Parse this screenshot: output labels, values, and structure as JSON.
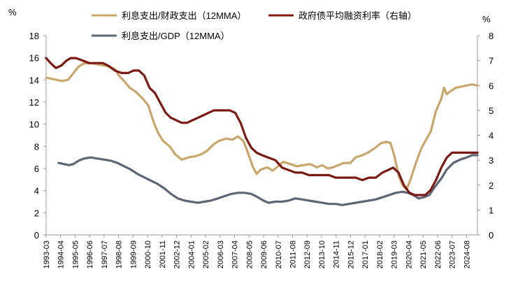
{
  "chart_data": {
    "type": "line",
    "left_axis": {
      "unit": "%",
      "ylim": [
        0,
        18
      ],
      "ticks": [
        0,
        2,
        4,
        6,
        8,
        10,
        12,
        14,
        16,
        18
      ]
    },
    "right_axis": {
      "unit": "%",
      "ylim": [
        0,
        8
      ],
      "ticks": [
        0,
        1,
        2,
        3,
        4,
        5,
        6,
        7,
        8
      ]
    },
    "x_tick_labels": [
      "1993-03",
      "1994-04",
      "1995-05",
      "1996-06",
      "1997-07",
      "1998-08",
      "1999-09",
      "2000-10",
      "2001-11",
      "2002-12",
      "2004-01",
      "2005-02",
      "2006-03",
      "2007-04",
      "2008-05",
      "2009-06",
      "2010-07",
      "2011-08",
      "2012-09",
      "2013-10",
      "2014-11",
      "2015-12",
      "2017-01",
      "2018-02",
      "2019-03",
      "2020-04",
      "2021-05",
      "2022-06",
      "2023-07",
      "2024-08"
    ],
    "x_range": [
      1993.17,
      2025.4
    ],
    "legend": {
      "placement": "top"
    },
    "series": [
      {
        "name": "利息支出/财政支出（12MMA）",
        "axis": "left",
        "color": "#c9a66b",
        "points": [
          [
            1993.17,
            14.2
          ],
          [
            1993.6,
            14.1
          ],
          [
            1994.0,
            14.0
          ],
          [
            1994.3,
            13.9
          ],
          [
            1994.8,
            14.0
          ],
          [
            1995.2,
            14.6
          ],
          [
            1995.6,
            15.2
          ],
          [
            1996.0,
            15.5
          ],
          [
            1996.6,
            15.5
          ],
          [
            1997.0,
            15.4
          ],
          [
            1997.5,
            15.3
          ],
          [
            1997.9,
            15.2
          ],
          [
            1998.3,
            15.0
          ],
          [
            1998.6,
            14.4
          ],
          [
            1999.0,
            13.9
          ],
          [
            1999.4,
            13.3
          ],
          [
            1999.9,
            12.9
          ],
          [
            2000.4,
            12.3
          ],
          [
            2000.8,
            11.7
          ],
          [
            2001.2,
            10.2
          ],
          [
            2001.5,
            9.3
          ],
          [
            2001.9,
            8.5
          ],
          [
            2002.4,
            8.0
          ],
          [
            2002.8,
            7.3
          ],
          [
            2003.3,
            6.8
          ],
          [
            2003.8,
            7.0
          ],
          [
            2004.3,
            7.1
          ],
          [
            2004.8,
            7.3
          ],
          [
            2005.2,
            7.6
          ],
          [
            2005.7,
            8.2
          ],
          [
            2006.1,
            8.5
          ],
          [
            2006.6,
            8.7
          ],
          [
            2007.1,
            8.6
          ],
          [
            2007.5,
            8.9
          ],
          [
            2007.9,
            8.5
          ],
          [
            2008.2,
            7.6
          ],
          [
            2008.6,
            6.2
          ],
          [
            2008.9,
            5.5
          ],
          [
            2009.2,
            5.9
          ],
          [
            2009.7,
            6.1
          ],
          [
            2010.1,
            5.8
          ],
          [
            2010.5,
            6.2
          ],
          [
            2010.9,
            6.6
          ],
          [
            2011.4,
            6.4
          ],
          [
            2011.9,
            6.2
          ],
          [
            2012.4,
            6.3
          ],
          [
            2012.9,
            6.4
          ],
          [
            2013.4,
            6.1
          ],
          [
            2013.8,
            6.3
          ],
          [
            2014.2,
            6.0
          ],
          [
            2014.6,
            6.1
          ],
          [
            2015.0,
            6.3
          ],
          [
            2015.4,
            6.5
          ],
          [
            2015.9,
            6.5
          ],
          [
            2016.3,
            7.0
          ],
          [
            2016.8,
            7.2
          ],
          [
            2017.3,
            7.5
          ],
          [
            2017.8,
            7.9
          ],
          [
            2018.2,
            8.3
          ],
          [
            2018.6,
            8.4
          ],
          [
            2018.9,
            8.3
          ],
          [
            2019.2,
            7.1
          ],
          [
            2019.5,
            5.4
          ],
          [
            2019.8,
            4.5
          ],
          [
            2020.1,
            4.1
          ],
          [
            2020.4,
            5.0
          ],
          [
            2020.8,
            6.5
          ],
          [
            2021.2,
            7.8
          ],
          [
            2021.6,
            8.7
          ],
          [
            2021.9,
            9.3
          ],
          [
            2022.3,
            11.2
          ],
          [
            2022.7,
            12.3
          ],
          [
            2022.9,
            13.3
          ],
          [
            2023.1,
            12.7
          ],
          [
            2023.4,
            13.0
          ],
          [
            2023.8,
            13.3
          ],
          [
            2024.2,
            13.4
          ],
          [
            2024.6,
            13.5
          ],
          [
            2025.0,
            13.6
          ],
          [
            2025.4,
            13.5
          ]
        ]
      },
      {
        "name": "政府债平均融资利率（右轴）",
        "axis": "right",
        "color": "#7b1a12",
        "points": [
          [
            1993.17,
            7.1
          ],
          [
            1993.5,
            6.9
          ],
          [
            1993.9,
            6.7
          ],
          [
            1994.3,
            6.8
          ],
          [
            1994.7,
            7.0
          ],
          [
            1995.0,
            7.1
          ],
          [
            1995.4,
            7.1
          ],
          [
            1995.9,
            7.0
          ],
          [
            1996.4,
            6.9
          ],
          [
            1996.9,
            6.9
          ],
          [
            1997.4,
            6.9
          ],
          [
            1997.8,
            6.8
          ],
          [
            1998.3,
            6.6
          ],
          [
            1998.8,
            6.5
          ],
          [
            1999.3,
            6.5
          ],
          [
            1999.7,
            6.6
          ],
          [
            2000.1,
            6.6
          ],
          [
            2000.5,
            6.4
          ],
          [
            2000.9,
            5.9
          ],
          [
            2001.3,
            5.7
          ],
          [
            2001.7,
            5.3
          ],
          [
            2002.1,
            4.9
          ],
          [
            2002.5,
            4.7
          ],
          [
            2002.9,
            4.6
          ],
          [
            2003.3,
            4.5
          ],
          [
            2003.7,
            4.5
          ],
          [
            2004.1,
            4.6
          ],
          [
            2004.5,
            4.7
          ],
          [
            2004.9,
            4.8
          ],
          [
            2005.3,
            4.9
          ],
          [
            2005.7,
            5.0
          ],
          [
            2006.1,
            5.0
          ],
          [
            2006.5,
            5.0
          ],
          [
            2006.9,
            5.0
          ],
          [
            2007.3,
            4.9
          ],
          [
            2007.7,
            4.5
          ],
          [
            2008.1,
            3.9
          ],
          [
            2008.5,
            3.5
          ],
          [
            2008.9,
            3.3
          ],
          [
            2009.3,
            3.2
          ],
          [
            2009.8,
            3.1
          ],
          [
            2010.3,
            3.0
          ],
          [
            2010.8,
            2.7
          ],
          [
            2011.3,
            2.6
          ],
          [
            2011.8,
            2.5
          ],
          [
            2012.3,
            2.5
          ],
          [
            2012.8,
            2.4
          ],
          [
            2013.3,
            2.4
          ],
          [
            2013.8,
            2.4
          ],
          [
            2014.3,
            2.4
          ],
          [
            2014.8,
            2.3
          ],
          [
            2015.3,
            2.3
          ],
          [
            2015.8,
            2.3
          ],
          [
            2016.3,
            2.3
          ],
          [
            2016.8,
            2.2
          ],
          [
            2017.3,
            2.3
          ],
          [
            2017.8,
            2.3
          ],
          [
            2018.3,
            2.5
          ],
          [
            2018.7,
            2.6
          ],
          [
            2019.1,
            2.7
          ],
          [
            2019.5,
            2.5
          ],
          [
            2019.9,
            2.0
          ],
          [
            2020.3,
            1.7
          ],
          [
            2020.7,
            1.6
          ],
          [
            2021.1,
            1.6
          ],
          [
            2021.5,
            1.6
          ],
          [
            2021.9,
            1.8
          ],
          [
            2022.3,
            2.2
          ],
          [
            2022.7,
            2.7
          ],
          [
            2023.1,
            3.1
          ],
          [
            2023.5,
            3.3
          ],
          [
            2023.9,
            3.3
          ],
          [
            2024.3,
            3.3
          ],
          [
            2024.8,
            3.3
          ],
          [
            2025.4,
            3.3
          ]
        ]
      },
      {
        "name": "利息支出/GDP（12MMA）",
        "axis": "left",
        "color": "#5d6675",
        "points": [
          [
            1994.1,
            6.5
          ],
          [
            1994.5,
            6.4
          ],
          [
            1994.9,
            6.3
          ],
          [
            1995.2,
            6.4
          ],
          [
            1995.6,
            6.7
          ],
          [
            1996.0,
            6.9
          ],
          [
            1996.5,
            7.0
          ],
          [
            1997.0,
            6.9
          ],
          [
            1997.5,
            6.8
          ],
          [
            1998.0,
            6.7
          ],
          [
            1998.5,
            6.5
          ],
          [
            1999.0,
            6.2
          ],
          [
            1999.5,
            5.9
          ],
          [
            2000.0,
            5.5
          ],
          [
            2000.5,
            5.2
          ],
          [
            2001.0,
            4.9
          ],
          [
            2001.5,
            4.6
          ],
          [
            2002.0,
            4.2
          ],
          [
            2002.5,
            3.7
          ],
          [
            2003.0,
            3.3
          ],
          [
            2003.5,
            3.1
          ],
          [
            2004.0,
            3.0
          ],
          [
            2004.5,
            2.9
          ],
          [
            2005.0,
            3.0
          ],
          [
            2005.5,
            3.1
          ],
          [
            2006.0,
            3.3
          ],
          [
            2006.5,
            3.5
          ],
          [
            2007.0,
            3.7
          ],
          [
            2007.5,
            3.8
          ],
          [
            2008.0,
            3.8
          ],
          [
            2008.5,
            3.7
          ],
          [
            2009.0,
            3.4
          ],
          [
            2009.4,
            3.1
          ],
          [
            2009.8,
            2.9
          ],
          [
            2010.3,
            3.0
          ],
          [
            2010.8,
            3.0
          ],
          [
            2011.3,
            3.1
          ],
          [
            2011.8,
            3.3
          ],
          [
            2012.3,
            3.2
          ],
          [
            2012.8,
            3.1
          ],
          [
            2013.3,
            3.0
          ],
          [
            2013.8,
            2.9
          ],
          [
            2014.3,
            2.8
          ],
          [
            2014.8,
            2.8
          ],
          [
            2015.3,
            2.7
          ],
          [
            2015.8,
            2.8
          ],
          [
            2016.3,
            2.9
          ],
          [
            2016.8,
            3.0
          ],
          [
            2017.3,
            3.1
          ],
          [
            2017.8,
            3.2
          ],
          [
            2018.3,
            3.4
          ],
          [
            2018.8,
            3.6
          ],
          [
            2019.3,
            3.8
          ],
          [
            2019.8,
            3.9
          ],
          [
            2020.2,
            3.8
          ],
          [
            2020.6,
            3.6
          ],
          [
            2021.0,
            3.3
          ],
          [
            2021.4,
            3.4
          ],
          [
            2021.8,
            3.6
          ],
          [
            2022.2,
            4.3
          ],
          [
            2022.7,
            5.1
          ],
          [
            2023.1,
            5.9
          ],
          [
            2023.6,
            6.5
          ],
          [
            2024.1,
            6.8
          ],
          [
            2024.6,
            7.0
          ],
          [
            2025.0,
            7.2
          ],
          [
            2025.4,
            7.2
          ]
        ]
      }
    ]
  }
}
